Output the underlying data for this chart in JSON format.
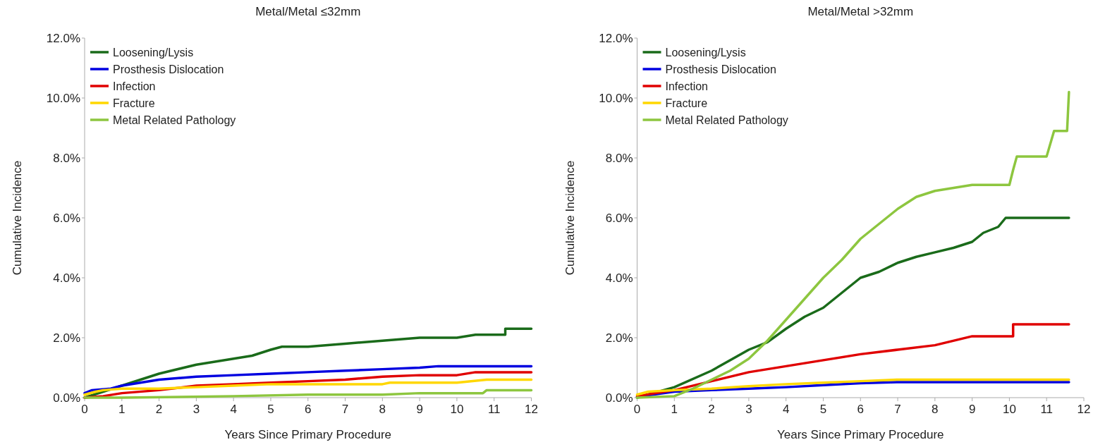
{
  "chart_data": [
    {
      "type": "line",
      "title": "Metal/Metal ≤32mm",
      "xlabel": "Years Since Primary Procedure",
      "ylabel": "Cumulative Incidence",
      "xlim": [
        0,
        12
      ],
      "xticks": [
        0,
        1,
        2,
        3,
        4,
        5,
        6,
        7,
        8,
        9,
        10,
        11,
        12
      ],
      "ylim": [
        0,
        12
      ],
      "yticks": [
        {
          "value": 0,
          "label": "0.0%"
        },
        {
          "value": 2,
          "label": "2.0%"
        },
        {
          "value": 4,
          "label": "4.0%"
        },
        {
          "value": 6,
          "label": "6.0%"
        },
        {
          "value": 8,
          "label": "8.0%"
        },
        {
          "value": 10,
          "label": "10.0%"
        },
        {
          "value": 12,
          "label": "12.0%"
        }
      ],
      "grid": false,
      "legend": "top left",
      "series": [
        {
          "name": "Loosening/Lysis",
          "color": "#1a6b1a",
          "x": [
            0,
            0.5,
            1,
            1.5,
            2,
            3,
            4,
            4.5,
            5,
            5.3,
            6,
            7,
            8,
            9,
            10,
            10.5,
            11.3,
            11.3,
            12
          ],
          "values": [
            0,
            0.2,
            0.4,
            0.6,
            0.8,
            1.1,
            1.3,
            1.4,
            1.6,
            1.7,
            1.7,
            1.8,
            1.9,
            2.0,
            2.0,
            2.1,
            2.1,
            2.3,
            2.3
          ]
        },
        {
          "name": "Prosthesis Dislocation",
          "color": "#0000e0",
          "x": [
            0,
            0.2,
            0.7,
            1,
            2,
            3,
            4,
            5,
            6,
            7,
            8,
            9,
            9.5,
            12
          ],
          "values": [
            0.15,
            0.25,
            0.3,
            0.4,
            0.6,
            0.7,
            0.75,
            0.8,
            0.85,
            0.9,
            0.95,
            1.0,
            1.05,
            1.05
          ]
        },
        {
          "name": "Infection",
          "color": "#e00000",
          "x": [
            0,
            0.5,
            1,
            2,
            3,
            4,
            5,
            6,
            7,
            8,
            9,
            10,
            10.5,
            12
          ],
          "values": [
            0,
            0.05,
            0.15,
            0.25,
            0.4,
            0.45,
            0.5,
            0.55,
            0.6,
            0.7,
            0.75,
            0.75,
            0.85,
            0.85
          ]
        },
        {
          "name": "Fracture",
          "color": "#ffd700",
          "x": [
            0,
            0.3,
            0.5,
            1,
            2,
            3,
            4,
            5,
            6,
            7,
            8,
            8.2,
            10,
            10.8,
            12
          ],
          "values": [
            0.1,
            0.2,
            0.25,
            0.3,
            0.3,
            0.35,
            0.4,
            0.45,
            0.45,
            0.45,
            0.45,
            0.5,
            0.5,
            0.6,
            0.6
          ]
        },
        {
          "name": "Metal Related Pathology",
          "color": "#8dc63f",
          "x": [
            0,
            1,
            4,
            6,
            8,
            9,
            10.7,
            10.8,
            12
          ],
          "values": [
            0,
            0,
            0.05,
            0.1,
            0.1,
            0.15,
            0.15,
            0.25,
            0.25
          ]
        }
      ]
    },
    {
      "type": "line",
      "title": "Metal/Metal >32mm",
      "xlabel": "Years Since Primary Procedure",
      "ylabel": "Cumulative Incidence",
      "xlim": [
        0,
        12
      ],
      "xticks": [
        0,
        1,
        2,
        3,
        4,
        5,
        6,
        7,
        8,
        9,
        10,
        11,
        12
      ],
      "ylim": [
        0,
        12
      ],
      "yticks": [
        {
          "value": 0,
          "label": "0.0%"
        },
        {
          "value": 2,
          "label": "2.0%"
        },
        {
          "value": 4,
          "label": "4.0%"
        },
        {
          "value": 6,
          "label": "6.0%"
        },
        {
          "value": 8,
          "label": "8.0%"
        },
        {
          "value": 10,
          "label": "10.0%"
        },
        {
          "value": 12,
          "label": "12.0%"
        }
      ],
      "grid": false,
      "legend": "top left",
      "series": [
        {
          "name": "Loosening/Lysis",
          "color": "#1a6b1a",
          "x": [
            0,
            1,
            2,
            3,
            3.5,
            4,
            4.5,
            5,
            5.5,
            6,
            6.5,
            7,
            7.5,
            8,
            8.5,
            9,
            9.3,
            9.7,
            9.9,
            11.6
          ],
          "values": [
            0,
            0.35,
            0.9,
            1.6,
            1.85,
            2.3,
            2.7,
            3.0,
            3.5,
            4.0,
            4.2,
            4.5,
            4.7,
            4.85,
            5.0,
            5.2,
            5.5,
            5.7,
            6.0,
            6.0
          ]
        },
        {
          "name": "Prosthesis Dislocation",
          "color": "#0000e0",
          "x": [
            0,
            1,
            2,
            3,
            4,
            5,
            6,
            7,
            11.6
          ],
          "values": [
            0.03,
            0.2,
            0.25,
            0.3,
            0.35,
            0.42,
            0.48,
            0.52,
            0.52
          ]
        },
        {
          "name": "Infection",
          "color": "#e00000",
          "x": [
            0,
            1,
            2,
            3,
            4,
            5,
            6,
            7,
            8,
            9,
            10.1,
            10.1,
            11.6
          ],
          "values": [
            0.05,
            0.25,
            0.55,
            0.85,
            1.05,
            1.25,
            1.45,
            1.6,
            1.75,
            2.05,
            2.05,
            2.45,
            2.45
          ]
        },
        {
          "name": "Fracture",
          "color": "#ffd700",
          "x": [
            0,
            0.3,
            1,
            2,
            3,
            4,
            5,
            6,
            7,
            11.6
          ],
          "values": [
            0.1,
            0.2,
            0.25,
            0.3,
            0.38,
            0.45,
            0.5,
            0.55,
            0.6,
            0.6
          ]
        },
        {
          "name": "Metal Related Pathology",
          "color": "#8dc63f",
          "x": [
            0,
            1,
            1.5,
            2,
            2.5,
            3,
            3.5,
            4,
            4.5,
            5,
            5.5,
            6,
            6.5,
            7,
            7.5,
            8,
            8.5,
            9,
            10,
            10.1,
            10.2,
            11,
            11.2,
            11.55,
            11.6
          ],
          "values": [
            0,
            0.05,
            0.3,
            0.6,
            0.9,
            1.3,
            1.9,
            2.6,
            3.3,
            4.0,
            4.6,
            5.3,
            5.8,
            6.3,
            6.7,
            6.9,
            7.0,
            7.1,
            7.1,
            7.6,
            8.05,
            8.05,
            8.9,
            8.9,
            10.2
          ]
        }
      ]
    }
  ]
}
